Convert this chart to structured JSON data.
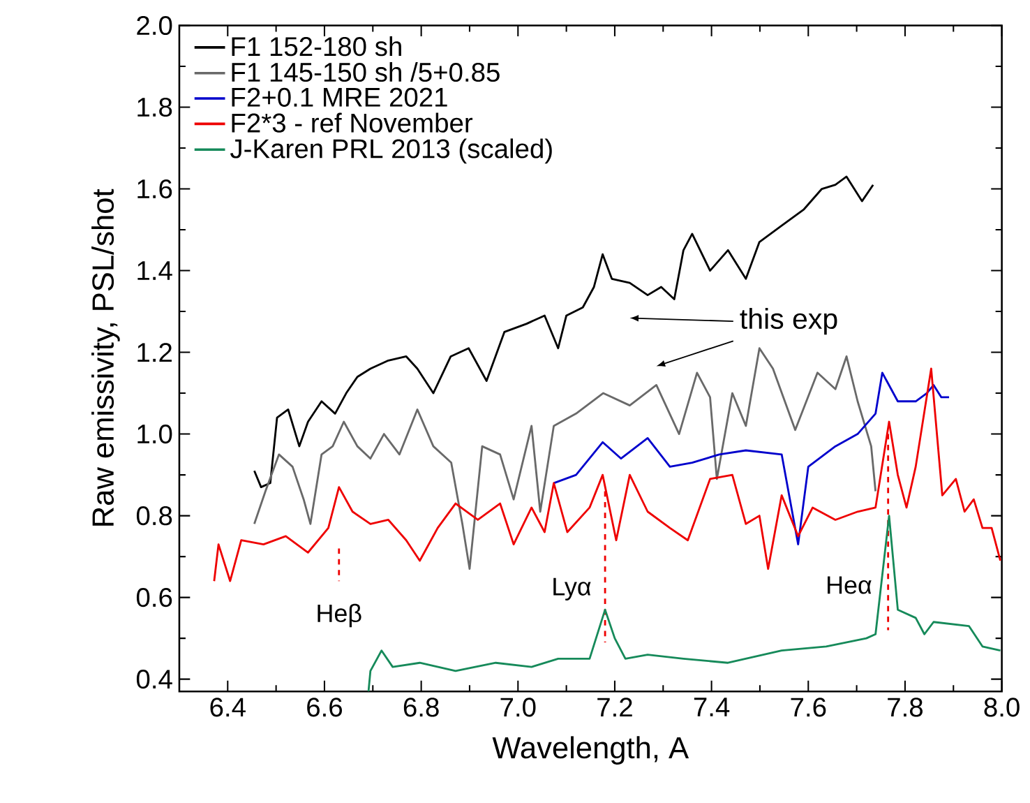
{
  "chart_data": {
    "type": "line",
    "xlabel": "Wavelength, A",
    "ylabel": "Raw emissivity, PSL/shot",
    "xlim": [
      6.3,
      8.0
    ],
    "ylim": [
      0.37,
      2.0
    ],
    "xticks": [
      6.4,
      6.6,
      6.8,
      {
        "value": 7,
        "label": "7.0"
      },
      7.2,
      7.4,
      7.6,
      7.8,
      {
        "value": 8,
        "label": "8.0"
      }
    ],
    "yticks": [
      0.4,
      0.6,
      0.8,
      {
        "value": 1,
        "label": "1.0"
      },
      1.2,
      1.4,
      1.6,
      1.8,
      {
        "value": 2,
        "label": "2.0"
      }
    ],
    "legend": "top left",
    "grid": false,
    "marker": "none",
    "line_style": "solid",
    "series": [
      {
        "name": "F1 152-180 sh",
        "color": "#000000",
        "x": [
          6.455,
          6.469,
          6.488,
          6.502,
          6.525,
          6.548,
          6.566,
          6.594,
          6.622,
          6.645,
          6.668,
          6.695,
          6.732,
          6.769,
          6.792,
          6.825,
          6.861,
          6.898,
          6.935,
          6.972,
          7.018,
          7.055,
          7.083,
          7.1,
          7.134,
          7.157,
          7.175,
          7.194,
          7.231,
          7.268,
          7.296,
          7.323,
          7.342,
          7.36,
          7.397,
          7.434,
          7.471,
          7.499,
          7.545,
          7.591,
          7.628,
          7.656,
          7.679,
          7.711,
          7.734
        ],
        "values": [
          0.91,
          0.87,
          0.88,
          1.04,
          1.06,
          0.97,
          1.03,
          1.08,
          1.05,
          1.1,
          1.14,
          1.16,
          1.18,
          1.19,
          1.16,
          1.1,
          1.19,
          1.21,
          1.13,
          1.25,
          1.27,
          1.29,
          1.21,
          1.29,
          1.31,
          1.36,
          1.44,
          1.38,
          1.37,
          1.34,
          1.36,
          1.33,
          1.45,
          1.49,
          1.4,
          1.45,
          1.38,
          1.47,
          1.51,
          1.55,
          1.6,
          1.61,
          1.63,
          1.57,
          1.61
        ]
      },
      {
        "name": "F1 145-150 sh /5+0.85",
        "color": "#696969",
        "x": [
          6.455,
          6.478,
          6.506,
          6.534,
          6.557,
          6.571,
          6.594,
          6.617,
          6.64,
          6.668,
          6.695,
          6.723,
          6.755,
          6.792,
          6.825,
          6.862,
          6.885,
          6.9,
          6.926,
          6.963,
          6.991,
          7.028,
          7.046,
          7.074,
          7.12,
          7.176,
          7.231,
          7.286,
          7.333,
          7.37,
          7.397,
          7.411,
          7.443,
          7.471,
          7.499,
          7.527,
          7.573,
          7.619,
          7.656,
          7.679,
          7.702,
          7.73,
          7.739
        ],
        "values": [
          0.78,
          0.86,
          0.95,
          0.92,
          0.84,
          0.78,
          0.95,
          0.97,
          1.03,
          0.97,
          0.94,
          1.0,
          0.95,
          1.06,
          0.97,
          0.93,
          0.78,
          0.67,
          0.97,
          0.95,
          0.84,
          1.02,
          0.81,
          1.02,
          1.05,
          1.1,
          1.07,
          1.12,
          1.0,
          1.15,
          1.09,
          0.89,
          1.1,
          1.02,
          1.21,
          1.16,
          1.01,
          1.15,
          1.11,
          1.19,
          1.08,
          0.97,
          0.86
        ]
      },
      {
        "name": "F2+0.1 MRE 2021",
        "color": "#0000cc",
        "x": [
          7.074,
          7.12,
          7.175,
          7.213,
          7.268,
          7.314,
          7.36,
          7.416,
          7.471,
          7.545,
          7.579,
          7.6,
          7.656,
          7.702,
          7.739,
          7.753,
          7.785,
          7.822,
          7.845,
          7.859,
          7.875,
          7.891
        ],
        "values": [
          0.88,
          0.9,
          0.98,
          0.94,
          0.99,
          0.92,
          0.93,
          0.95,
          0.96,
          0.95,
          0.73,
          0.92,
          0.97,
          1.0,
          1.05,
          1.15,
          1.08,
          1.08,
          1.1,
          1.12,
          1.09,
          1.09
        ]
      },
      {
        "name": "F2*3 - ref November",
        "color": "#ee0000",
        "x": [
          6.372,
          6.381,
          6.405,
          6.428,
          6.474,
          6.52,
          6.566,
          6.608,
          6.63,
          6.658,
          6.695,
          6.732,
          6.769,
          6.797,
          6.834,
          6.871,
          6.917,
          6.963,
          6.991,
          7.028,
          7.055,
          7.074,
          7.102,
          7.148,
          7.175,
          7.203,
          7.231,
          7.268,
          7.314,
          7.351,
          7.397,
          7.443,
          7.471,
          7.499,
          7.517,
          7.545,
          7.579,
          7.609,
          7.656,
          7.702,
          7.739,
          7.767,
          7.785,
          7.803,
          7.822,
          7.854,
          7.877,
          7.905,
          7.923,
          7.942,
          7.96,
          7.979,
          7.997
        ],
        "values": [
          0.64,
          0.73,
          0.64,
          0.74,
          0.73,
          0.75,
          0.71,
          0.77,
          0.87,
          0.81,
          0.78,
          0.79,
          0.74,
          0.69,
          0.77,
          0.83,
          0.79,
          0.83,
          0.73,
          0.82,
          0.76,
          0.88,
          0.76,
          0.82,
          0.9,
          0.74,
          0.9,
          0.81,
          0.77,
          0.74,
          0.89,
          0.9,
          0.78,
          0.8,
          0.67,
          0.85,
          0.75,
          0.82,
          0.79,
          0.81,
          0.82,
          1.03,
          0.9,
          0.82,
          0.92,
          1.16,
          0.85,
          0.89,
          0.81,
          0.84,
          0.77,
          0.77,
          0.69
        ]
      },
      {
        "color": "#ee0000",
        "line_style": "dashed",
        "x": [
          6.63,
          6.63
        ],
        "values": [
          0.72,
          0.64
        ]
      },
      {
        "color": "#ee0000",
        "line_style": "dashed",
        "x": [
          7.18,
          7.18
        ],
        "values": [
          0.86,
          0.49
        ]
      },
      {
        "color": "#ee0000",
        "line_style": "dashed",
        "x": [
          7.765,
          7.765
        ],
        "values": [
          1.0,
          0.52
        ]
      },
      {
        "name": "J-Karen PRL 2013 (scaled)",
        "color": "#168a5a",
        "x": [
          6.691,
          6.695,
          6.718,
          6.741,
          6.797,
          6.871,
          6.954,
          7.028,
          7.083,
          7.12,
          7.148,
          7.18,
          7.2,
          7.222,
          7.268,
          7.342,
          7.434,
          7.545,
          7.637,
          7.72,
          7.739,
          7.767,
          7.785,
          7.822,
          7.84,
          7.859,
          7.932,
          7.96,
          7.997
        ],
        "values": [
          0.37,
          0.42,
          0.47,
          0.43,
          0.44,
          0.42,
          0.44,
          0.43,
          0.45,
          0.45,
          0.45,
          0.57,
          0.5,
          0.45,
          0.46,
          0.45,
          0.44,
          0.47,
          0.48,
          0.5,
          0.51,
          0.8,
          0.57,
          0.55,
          0.51,
          0.54,
          0.53,
          0.48,
          0.47
        ]
      }
    ],
    "annotations": [
      "this exp",
      "Heβ",
      "Lyα",
      "Heα"
    ]
  }
}
